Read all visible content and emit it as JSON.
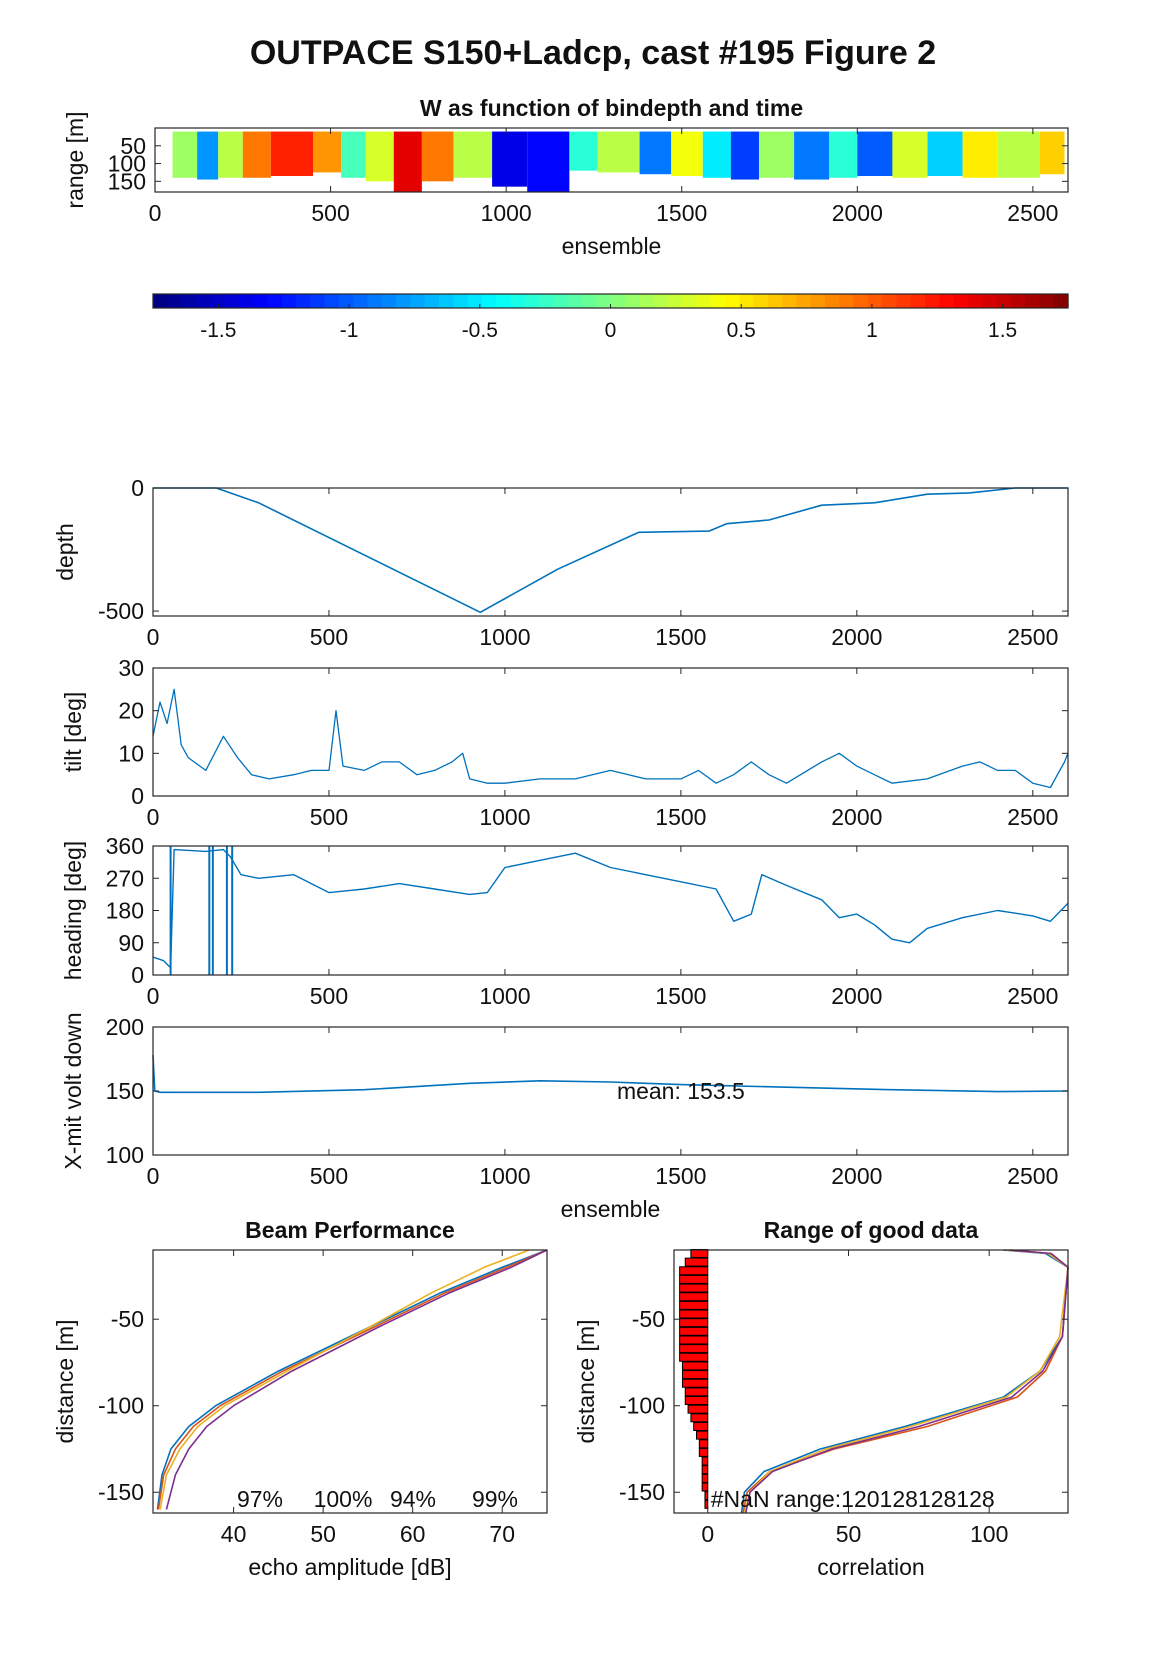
{
  "figure_title": "OUTPACE S150+Ladcp, cast #195 Figure 2",
  "chart_data": [
    {
      "id": "w_image",
      "type": "heatmap",
      "title": "W as function of bindepth and time",
      "xlabel": "ensemble",
      "ylabel": "range [m]",
      "xlim": [
        0,
        2600
      ],
      "ylim": [
        180,
        0
      ],
      "xticks": [
        "0",
        "500",
        "1000",
        "1500",
        "2000",
        "2500"
      ],
      "yticks": [
        "50",
        "100",
        "150"
      ],
      "colorbar": {
        "range": [
          -1.75,
          1.75
        ],
        "ticks": [
          "-1.5",
          "-1",
          "-0.5",
          "0",
          "0.5",
          "1",
          "1.5"
        ],
        "colormap": "jet"
      },
      "segments": [
        {
          "x": [
            50,
            120
          ],
          "range": [
            10,
            140
          ],
          "w": 0.1
        },
        {
          "x": [
            120,
            180
          ],
          "range": [
            10,
            145
          ],
          "w": -0.8
        },
        {
          "x": [
            180,
            250
          ],
          "range": [
            10,
            140
          ],
          "w": 0.2
        },
        {
          "x": [
            250,
            330
          ],
          "range": [
            10,
            140
          ],
          "w": 0.9
        },
        {
          "x": [
            330,
            450
          ],
          "range": [
            10,
            135
          ],
          "w": 1.2
        },
        {
          "x": [
            450,
            530
          ],
          "range": [
            10,
            125
          ],
          "w": 0.8
        },
        {
          "x": [
            530,
            600
          ],
          "range": [
            10,
            140
          ],
          "w": -0.2
        },
        {
          "x": [
            600,
            680
          ],
          "range": [
            10,
            150
          ],
          "w": 0.3
        },
        {
          "x": [
            680,
            760
          ],
          "range": [
            10,
            180
          ],
          "w": 1.4
        },
        {
          "x": [
            760,
            850
          ],
          "range": [
            10,
            150
          ],
          "w": 0.9
        },
        {
          "x": [
            850,
            960
          ],
          "range": [
            10,
            140
          ],
          "w": 0.2
        },
        {
          "x": [
            960,
            1060
          ],
          "range": [
            10,
            165
          ],
          "w": -1.4
        },
        {
          "x": [
            1060,
            1180
          ],
          "range": [
            10,
            180
          ],
          "w": -1.3
        },
        {
          "x": [
            1180,
            1260
          ],
          "range": [
            10,
            120
          ],
          "w": -0.3
        },
        {
          "x": [
            1260,
            1380
          ],
          "range": [
            10,
            125
          ],
          "w": 0.2
        },
        {
          "x": [
            1380,
            1470
          ],
          "range": [
            10,
            130
          ],
          "w": -0.9
        },
        {
          "x": [
            1470,
            1560
          ],
          "range": [
            10,
            135
          ],
          "w": 0.4
        },
        {
          "x": [
            1560,
            1640
          ],
          "range": [
            10,
            140
          ],
          "w": -0.5
        },
        {
          "x": [
            1640,
            1720
          ],
          "range": [
            10,
            145
          ],
          "w": -1.1
        },
        {
          "x": [
            1720,
            1820
          ],
          "range": [
            10,
            140
          ],
          "w": 0.1
        },
        {
          "x": [
            1820,
            1920
          ],
          "range": [
            10,
            145
          ],
          "w": -0.9
        },
        {
          "x": [
            1920,
            2000
          ],
          "range": [
            10,
            140
          ],
          "w": -0.3
        },
        {
          "x": [
            2000,
            2100
          ],
          "range": [
            10,
            135
          ],
          "w": -1.0
        },
        {
          "x": [
            2100,
            2200
          ],
          "range": [
            10,
            140
          ],
          "w": 0.3
        },
        {
          "x": [
            2200,
            2300
          ],
          "range": [
            10,
            135
          ],
          "w": -0.6
        },
        {
          "x": [
            2300,
            2400
          ],
          "range": [
            10,
            140
          ],
          "w": 0.5
        },
        {
          "x": [
            2400,
            2520
          ],
          "range": [
            10,
            140
          ],
          "w": 0.2
        },
        {
          "x": [
            2520,
            2590
          ],
          "range": [
            10,
            130
          ],
          "w": 0.6
        }
      ]
    },
    {
      "id": "depth",
      "type": "line",
      "xlabel": "",
      "ylabel": "depth",
      "xlim": [
        0,
        2600
      ],
      "ylim": [
        -520,
        0
      ],
      "xticks": [
        "0",
        "500",
        "1000",
        "1500",
        "2000",
        "2500"
      ],
      "yticks": [
        "-500",
        "0"
      ],
      "color": "#0072BD",
      "x": [
        0,
        180,
        300,
        930,
        1150,
        1380,
        1580,
        1630,
        1750,
        1900,
        2050,
        2200,
        2320,
        2450,
        2600
      ],
      "y": [
        0,
        0,
        -60,
        -505,
        -330,
        -180,
        -175,
        -145,
        -130,
        -70,
        -60,
        -25,
        -20,
        0,
        0
      ]
    },
    {
      "id": "tilt",
      "type": "line",
      "xlabel": "",
      "ylabel": "tilt [deg]",
      "xlim": [
        0,
        2600
      ],
      "ylim": [
        0,
        30
      ],
      "xticks": [
        "0",
        "500",
        "1000",
        "1500",
        "2000",
        "2500"
      ],
      "yticks": [
        "0",
        "10",
        "20",
        "30"
      ],
      "color": "#0072BD",
      "x": [
        0,
        20,
        40,
        60,
        80,
        100,
        150,
        200,
        240,
        280,
        330,
        400,
        450,
        500,
        520,
        540,
        600,
        650,
        700,
        750,
        800,
        850,
        880,
        900,
        950,
        1000,
        1100,
        1200,
        1300,
        1400,
        1500,
        1550,
        1600,
        1650,
        1700,
        1750,
        1800,
        1900,
        1950,
        2000,
        2050,
        2100,
        2200,
        2300,
        2350,
        2400,
        2450,
        2500,
        2550,
        2590,
        2600
      ],
      "y": [
        14,
        22,
        17,
        25,
        12,
        9,
        6,
        14,
        9,
        5,
        4,
        5,
        6,
        6,
        20,
        7,
        6,
        8,
        8,
        5,
        6,
        8,
        10,
        4,
        3,
        3,
        4,
        4,
        6,
        4,
        4,
        6,
        3,
        5,
        8,
        5,
        3,
        8,
        10,
        7,
        5,
        3,
        4,
        7,
        8,
        6,
        6,
        3,
        2,
        8,
        10
      ]
    },
    {
      "id": "heading",
      "type": "line",
      "xlabel": "",
      "ylabel": "heading [deg]",
      "xlim": [
        0,
        2600
      ],
      "ylim": [
        0,
        360
      ],
      "xticks": [
        "0",
        "500",
        "1000",
        "1500",
        "2000",
        "2500"
      ],
      "yticks": [
        "0",
        "90",
        "180",
        "270",
        "360"
      ],
      "color": "#0072BD",
      "x": [
        0,
        30,
        50,
        60,
        150,
        200,
        220,
        250,
        300,
        400,
        500,
        600,
        700,
        800,
        900,
        950,
        1000,
        1100,
        1200,
        1300,
        1400,
        1500,
        1600,
        1650,
        1700,
        1730,
        1800,
        1900,
        1950,
        2000,
        2050,
        2100,
        2150,
        2200,
        2300,
        2400,
        2500,
        2550,
        2600
      ],
      "y": [
        50,
        40,
        20,
        350,
        345,
        350,
        330,
        280,
        270,
        280,
        230,
        240,
        255,
        240,
        225,
        230,
        300,
        320,
        340,
        300,
        280,
        260,
        240,
        150,
        170,
        280,
        250,
        210,
        160,
        170,
        140,
        100,
        90,
        130,
        160,
        180,
        165,
        150,
        200
      ]
    },
    {
      "id": "xmit_volt",
      "type": "line",
      "xlabel": "ensemble",
      "ylabel": "X-mit volt down",
      "xlim": [
        0,
        2600
      ],
      "ylim": [
        100,
        200
      ],
      "xticks": [
        "0",
        "500",
        "1000",
        "1500",
        "2000",
        "2500"
      ],
      "yticks": [
        "100",
        "150",
        "200"
      ],
      "annotation": "mean: 153.5",
      "color": "#0072BD",
      "x": [
        0,
        5,
        20,
        300,
        600,
        900,
        1100,
        1300,
        1500,
        1800,
        2100,
        2400,
        2600
      ],
      "y": [
        178,
        150,
        149,
        149,
        151,
        156,
        158,
        157,
        155,
        153,
        151,
        149.5,
        150
      ]
    },
    {
      "id": "beam_performance",
      "type": "line",
      "title": "Beam Performance",
      "xlabel": "echo amplitude [dB]",
      "ylabel": "distance [m]",
      "xlim": [
        31,
        75
      ],
      "ylim": [
        -162,
        -10
      ],
      "xticks": [
        "40",
        "50",
        "60",
        "70"
      ],
      "yticks": [
        "-50",
        "-100",
        "-150"
      ],
      "annotations": [
        "97%",
        "100%",
        "94%",
        "99%"
      ],
      "series": [
        {
          "color": "#0072BD",
          "x": [
            31.5,
            32,
            33,
            35,
            38,
            45,
            55,
            63,
            70,
            75
          ],
          "y": [
            -160,
            -140,
            -125,
            -112,
            -100,
            -80,
            -55,
            -35,
            -20,
            -10
          ]
        },
        {
          "color": "#D95319",
          "x": [
            31.6,
            32.2,
            33.5,
            35.5,
            38.5,
            45.5,
            55.5,
            63.5,
            70.5,
            75
          ],
          "y": [
            -160,
            -140,
            -125,
            -112,
            -100,
            -80,
            -55,
            -35,
            -20,
            -10
          ]
        },
        {
          "color": "#EDB120",
          "x": [
            31.8,
            32.5,
            34,
            36,
            39,
            46,
            55,
            62,
            68,
            73
          ],
          "y": [
            -160,
            -140,
            -125,
            -112,
            -100,
            -80,
            -55,
            -35,
            -20,
            -10
          ]
        },
        {
          "color": "#7E2F8E",
          "x": [
            32.5,
            33.5,
            35,
            37,
            40,
            46.5,
            56,
            64,
            71,
            75
          ],
          "y": [
            -160,
            -140,
            -125,
            -112,
            -100,
            -80,
            -55,
            -35,
            -20,
            -10
          ]
        }
      ]
    },
    {
      "id": "range_good_data",
      "type": "line",
      "title": "Range of good data",
      "xlabel": "correlation",
      "ylabel": "distance [m]",
      "xlim": [
        -12,
        128
      ],
      "ylim": [
        -162,
        -10
      ],
      "xticks": [
        "0",
        "50",
        "100"
      ],
      "yticks": [
        "-50",
        "-100",
        "-150"
      ],
      "annotation": "#NaN range:120128128128",
      "bars": {
        "color": "#FF0000",
        "y": [
          -12,
          -17,
          -22,
          -27,
          -32,
          -37,
          -42,
          -47,
          -52,
          -57,
          -62,
          -67,
          -72,
          -77,
          -82,
          -87,
          -92,
          -97,
          -102,
          -107,
          -112,
          -117,
          -122,
          -127,
          -132,
          -137,
          -142,
          -147,
          -152,
          -157
        ],
        "values": [
          6,
          8,
          10,
          10,
          10,
          10,
          10,
          10,
          10,
          10,
          10,
          10,
          10,
          9,
          9,
          9,
          8,
          8,
          7,
          6,
          5,
          4,
          3,
          3,
          2,
          2,
          2,
          2,
          1,
          1
        ]
      },
      "series": [
        {
          "color": "#0072BD",
          "x": [
            12,
            13,
            20,
            40,
            70,
            105,
            118,
            126,
            128,
            120,
            105
          ],
          "y": [
            -162,
            -150,
            -138,
            -125,
            -112,
            -95,
            -80,
            -60,
            -20,
            -12,
            -10
          ]
        },
        {
          "color": "#D95319",
          "x": [
            12.5,
            14,
            22,
            45,
            78,
            110,
            120,
            126,
            128,
            122,
            108
          ],
          "y": [
            -162,
            -150,
            -138,
            -125,
            -112,
            -95,
            -80,
            -60,
            -20,
            -12,
            -10
          ]
        },
        {
          "color": "#EDB120",
          "x": [
            13,
            15,
            22,
            42,
            72,
            106,
            118,
            125,
            128,
            121,
            106
          ],
          "y": [
            -162,
            -150,
            -138,
            -125,
            -112,
            -95,
            -80,
            -60,
            -20,
            -12,
            -10
          ]
        },
        {
          "color": "#7E2F8E",
          "x": [
            13.5,
            15,
            23,
            44,
            75,
            108,
            119,
            126,
            128,
            122,
            107
          ],
          "y": [
            -162,
            -150,
            -138,
            -125,
            -112,
            -95,
            -80,
            -60,
            -20,
            -12,
            -10
          ]
        }
      ]
    }
  ]
}
